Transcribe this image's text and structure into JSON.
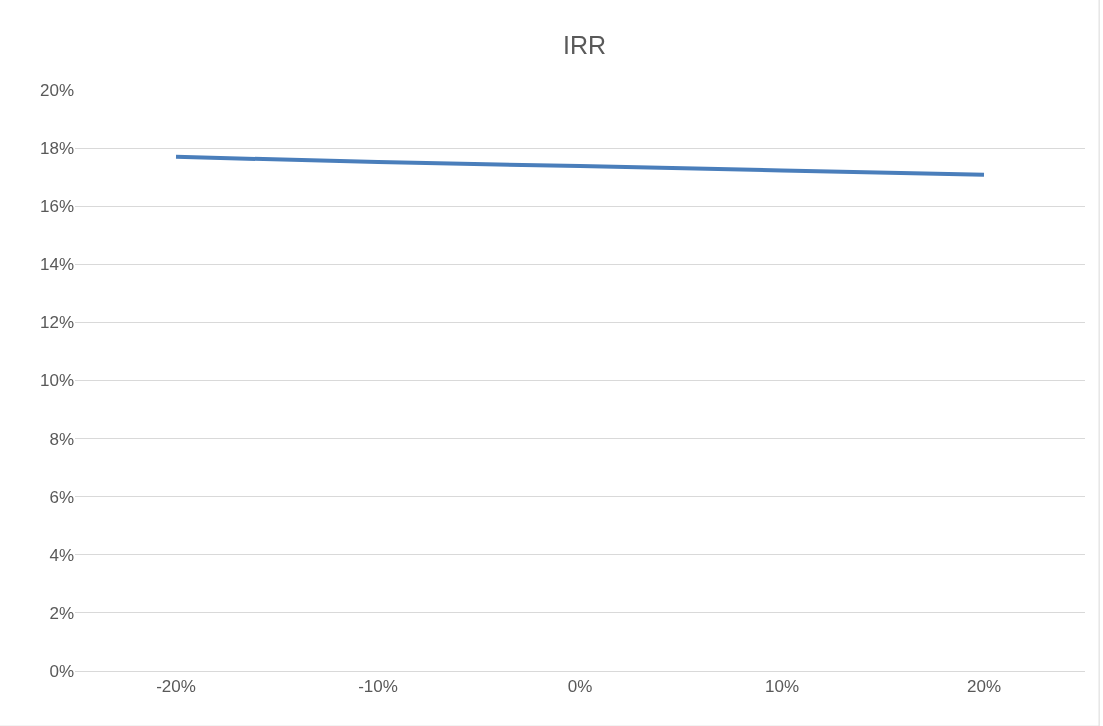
{
  "chart_data": {
    "type": "line",
    "title": "IRR",
    "categories": [
      "-20%",
      "-10%",
      "0%",
      "10%",
      "20%"
    ],
    "series": [
      {
        "color": "#4a7ebb",
        "values": [
          17.7,
          17.52,
          17.38,
          17.23,
          17.08
        ]
      }
    ],
    "ylim": [
      0,
      20
    ],
    "yticks": [
      {
        "value": 0,
        "label": "0%"
      },
      {
        "value": 2,
        "label": "2%"
      },
      {
        "value": 4,
        "label": "4%"
      },
      {
        "value": 6,
        "label": "6%"
      },
      {
        "value": 8,
        "label": "8%"
      },
      {
        "value": 10,
        "label": "10%"
      },
      {
        "value": 12,
        "label": "12%"
      },
      {
        "value": 14,
        "label": "14%"
      },
      {
        "value": 16,
        "label": "16%"
      },
      {
        "value": 18,
        "label": "18%"
      },
      {
        "value": 20,
        "label": "20%"
      }
    ],
    "grid": "y",
    "marker": "none",
    "line_style": "solid"
  }
}
